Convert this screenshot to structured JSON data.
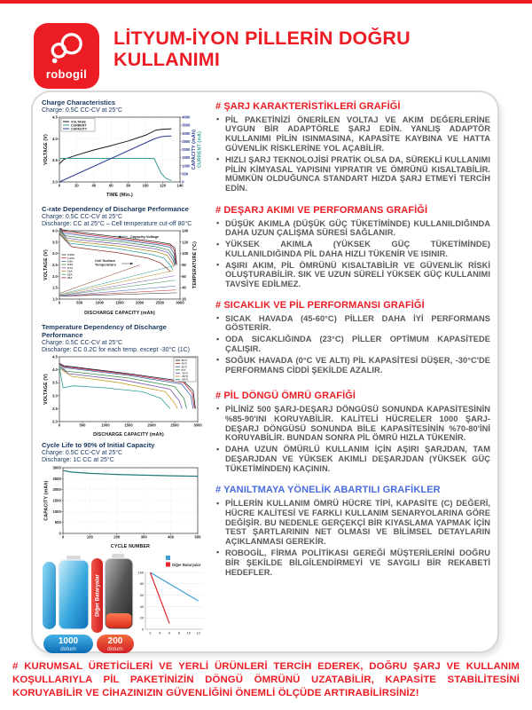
{
  "page": {
    "logo_text": "robogil",
    "title": "LİTYUM-İYON PİLLERİN DOĞRU KULLANIMI",
    "accent_red": "#ec1c24",
    "accent_blue": "#4a6bdf",
    "body_text_color": "#58595b"
  },
  "sections": [
    {
      "heading": "# ŞARJ KARAKTERİSTİKLERİ GRAFİĞİ",
      "color": "red",
      "bullets": [
        "PİL PAKETİNİZİ ÖNERİLEN VOLTAJ VE AKIM DEĞERLERİNE UYGUN BİR ADAPTÖRLE ŞARJ EDİN. YANLIŞ ADAPTÖR KULLANIMI PİLİN ISINMASINA, KAPASİTE KAYBINA VE HATTA GÜVENLİK RİSKLERİNE YOL AÇABİLİR.",
        "HIZLI ŞARJ TEKNOLOJİSİ PRATİK OLSA DA, SÜREKLİ KULLANIMI PİLİN KİMYASAL YAPISINI YIPRATIR VE ÖMRÜNÜ KISALTABİLİR. MÜMKÜN OLDUĞUNCA STANDART HIZDA ŞARJ ETMEYİ TERCİH EDİN."
      ]
    },
    {
      "heading": "# DEŞARJ AKIMI VE PERFORMANS GRAFİĞİ",
      "color": "red",
      "bullets": [
        "DÜŞÜK AKIMLA (DÜŞÜK GÜÇ TÜKETİMİNDE) KULLANILDIĞINDA DAHA UZUN ÇALIŞMA SÜRESİ SAĞLANIR.",
        "YÜKSEK AKIMLA (YÜKSEK GÜÇ TÜKETİMİNDE) KULLANILDIĞINDA PİL DAHA HIZLI TÜKENİR VE ISINIR.",
        "AŞIRI AKIM, PİL ÖMRÜNÜ KISALTABİLİR VE GÜVENLİK RİSKİ OLUŞTURABİLİR. SIK VE UZUN SÜRELİ YÜKSEK GÜÇ KULLANIMI TAVSİYE EDİLMEZ."
      ]
    },
    {
      "heading": "# SICAKLIK VE PİL PERFORMANSI GRAFİĞİ",
      "color": "red",
      "bullets": [
        "SICAK HAVADA (45-60°C) PİLLER DAHA İYİ PERFORMANS GÖSTERİR.",
        "ODA SICAKLIĞINDA (23°C) PİLLER OPTİMUM KAPASİTEDE ÇALIŞIR.",
        "SOĞUK HAVADA (0°C VE ALTI) PİL KAPASİTESİ DÜŞER, -30°C'DE PERFORMANS CİDDİ ŞEKİLDE AZALIR."
      ]
    },
    {
      "heading": "# PİL DÖNGÜ ÖMRÜ GRAFİĞİ",
      "color": "red",
      "bullets": [
        "PİLİNİZ 500 ŞARJ-DEŞARJ DÖNGÜSÜ SONUNDA KAPASİTESİNİN %85-90'INI KORUYABİLİR. KALİTELİ HÜCRELER 1000 ŞARJ-DEŞARJ DÖNGÜSÜ SONUNDA BİLE KAPASİTESİNİN %70-80'İNİ KORUYABİLİR. BUNDAN SONRA PİL ÖMRÜ HIZLA TÜKENİR.",
        "DAHA UZUN ÖMÜRLÜ KULLANIM İÇİN AŞIRI ŞARJDAN, TAM DEŞARJDAN VE YÜKSEK AKIMLI DEŞARJDAN (YÜKSEK GÜÇ TÜKETİMİNDEN) KAÇININ."
      ]
    },
    {
      "heading": "# YANILTMAYA YÖNELİK ABARTILI GRAFİKLER",
      "color": "blue",
      "bullets": [
        "PİLLERİN KULLANIM ÖMRÜ HÜCRE TİPİ, KAPASİTE (C) DEĞERİ, HÜCRE KALİTESİ VE FARKLI KULLANIM SENARYOLARINA GÖRE DEĞİŞİR. BU NEDENLE GERÇEKÇİ BİR KIYASLAMA YAPMAK İÇİN TEST ŞARTLARININ NET OLMASI VE BİLİMSEL DETAYLARIN AÇIKLANMASI GEREKİR.",
        "ROBOGİL, FİRMA POLİTİKASI GEREĞİ MÜŞTERİLERİNİ DOĞRU BİR ŞEKİLDE BİLGİLENDİRMEYİ VE SAYGILI BİR REKABETİ HEDEFLER."
      ]
    }
  ],
  "footer": "# KURUMSAL ÜRETİCİLERİ VE YERLİ ÜRÜNLERİ TERCİH EDEREK, DOĞRU ŞARJ VE KULLANIM KOŞULLARIYLA PİL PAKETİNİZİN DÖNGÜ ÖMRÜNÜ UZATABİLİR, KAPASİTE STABİLİTESİNİ KORUYABİLİR VE CİHAZINIZIN GÜVENLİĞİNİ ÖNEMLİ ÖLÇÜDE ARTIRABİLİRSİNİZ!",
  "battery_graphic": {
    "other_batteries_label": "Diğer Bataryalar",
    "blue_pill": {
      "count": "1000",
      "unit": "dolum"
    },
    "red_pill": {
      "count": "200",
      "unit": "dolum"
    }
  },
  "chart_data": [
    {
      "id": "charge",
      "type": "line",
      "title": "Charge Characteristics",
      "subtitles": [
        "Charge: 0.5C CC-CV at 25°C"
      ],
      "xlabel": "TIME (Min.)",
      "ylabel_left": "VOLTAGE (V)",
      "ylabel_right": [
        "CAPACITY (mAh)",
        "CURRENT (mA)"
      ],
      "xlim": [
        0,
        140
      ],
      "xticks": [
        0,
        20,
        40,
        60,
        80,
        100,
        120,
        140
      ],
      "ylim_left": [
        3.0,
        4.5
      ],
      "yticks_left": [
        3.0,
        3.5,
        4.0,
        4.5
      ],
      "ylim_right": [
        0,
        4000
      ],
      "yticks_right": [
        0,
        500,
        1000,
        1500,
        2000,
        2500,
        3000,
        3500,
        4000
      ],
      "legend_position": "top-left",
      "series": [
        {
          "name": "VOLTAGE",
          "axis": "left",
          "color": "#1a1a1a",
          "points": [
            [
              0,
              3.42
            ],
            [
              5,
              3.52
            ],
            [
              20,
              3.62
            ],
            [
              40,
              3.74
            ],
            [
              60,
              3.84
            ],
            [
              80,
              3.95
            ],
            [
              100,
              4.08
            ],
            [
              112,
              4.2
            ],
            [
              120,
              4.22
            ],
            [
              130,
              4.23
            ]
          ]
        },
        {
          "name": "CURRENT",
          "axis": "right",
          "color": "#2e9e96",
          "points": [
            [
              0,
              1450
            ],
            [
              110,
              1450
            ],
            [
              114,
              1000
            ],
            [
              118,
              550
            ],
            [
              123,
              250
            ],
            [
              128,
              120
            ],
            [
              130,
              100
            ]
          ]
        },
        {
          "name": "CAPACITY",
          "axis": "right",
          "color": "#2b3990",
          "points": [
            [
              0,
              0
            ],
            [
              110,
              2660
            ],
            [
              118,
              2790
            ],
            [
              125,
              2830
            ],
            [
              130,
              2840
            ]
          ]
        }
      ]
    },
    {
      "id": "crate",
      "type": "line",
      "title": "C-rate Dependency of Discharge Performance",
      "subtitles": [
        "Charge: 0.5C CC-CV at 25°C",
        "Discharge: CC at 25°C – Cell temperature cut-off 80°C"
      ],
      "xlabel": "DISCHARGE CAPACITY (mAh)",
      "ylabel_left": "VOLTAGE (V)",
      "ylabel_right": "TEMPERATURE (°C)",
      "xlim": [
        0,
        3000
      ],
      "xticks": [
        0,
        500,
        1000,
        1500,
        2000,
        2500,
        3000
      ],
      "ylim_left": [
        1.0,
        4.0
      ],
      "yticks_left": [
        1.0,
        1.5,
        2.0,
        2.5,
        3.0,
        3.5,
        4.0
      ],
      "ylim_right": [
        20,
        140
      ],
      "yticks_right": [
        20,
        40,
        60,
        80,
        100,
        120,
        140
      ],
      "annotations": [
        "Capacity-Voltage",
        "Cell Surface Temperature"
      ],
      "series": [
        {
          "name": "0.58A",
          "color": "#2b2b2b",
          "v": [
            [
              0,
              4.18
            ],
            [
              60,
              4.05
            ],
            [
              500,
              3.93
            ],
            [
              1500,
              3.72
            ],
            [
              2400,
              3.52
            ],
            [
              2750,
              3.42
            ],
            [
              2870,
              3.25
            ],
            [
              2920,
              2.5
            ]
          ],
          "t": [
            [
              0,
              25
            ],
            [
              2920,
              31
            ]
          ]
        },
        {
          "name": "1.45A",
          "color": "#c2272d",
          "v": [
            [
              0,
              4.14
            ],
            [
              80,
              3.98
            ],
            [
              500,
              3.87
            ],
            [
              1500,
              3.66
            ],
            [
              2400,
              3.46
            ],
            [
              2750,
              3.36
            ],
            [
              2860,
              3.15
            ],
            [
              2900,
              2.55
            ]
          ],
          "t": [
            [
              0,
              25
            ],
            [
              2900,
              36
            ]
          ]
        },
        {
          "name": "2.9A",
          "color": "#3f63b0",
          "v": [
            [
              0,
              4.1
            ],
            [
              100,
              3.9
            ],
            [
              500,
              3.8
            ],
            [
              1500,
              3.6
            ],
            [
              2400,
              3.4
            ],
            [
              2750,
              3.28
            ],
            [
              2850,
              3.0
            ],
            [
              2890,
              2.5
            ]
          ],
          "t": [
            [
              0,
              25
            ],
            [
              2890,
              43
            ]
          ]
        },
        {
          "name": "5.8A",
          "color": "#3a8a4d",
          "v": [
            [
              0,
              4.05
            ],
            [
              150,
              3.78
            ],
            [
              500,
              3.7
            ],
            [
              1500,
              3.52
            ],
            [
              2400,
              3.3
            ],
            [
              2720,
              3.15
            ],
            [
              2840,
              2.85
            ],
            [
              2880,
              2.5
            ]
          ],
          "t": [
            [
              0,
              26
            ],
            [
              2880,
              53
            ]
          ]
        },
        {
          "name": "8.7A",
          "color": "#7a5aa8",
          "v": [
            [
              0,
              4.0
            ],
            [
              180,
              3.68
            ],
            [
              500,
              3.6
            ],
            [
              1500,
              3.42
            ],
            [
              2400,
              3.2
            ],
            [
              2700,
              3.05
            ],
            [
              2820,
              2.75
            ],
            [
              2870,
              2.45
            ]
          ],
          "t": [
            [
              0,
              26
            ],
            [
              2870,
              61
            ]
          ]
        },
        {
          "name": "15A",
          "color": "#b08a1e",
          "v": [
            [
              0,
              3.95
            ],
            [
              200,
              3.58
            ],
            [
              500,
              3.5
            ],
            [
              1500,
              3.32
            ],
            [
              2400,
              3.08
            ],
            [
              2680,
              2.92
            ],
            [
              2800,
              2.6
            ],
            [
              2850,
              2.4
            ]
          ],
          "t": [
            [
              0,
              27
            ],
            [
              2850,
              70
            ]
          ]
        },
        {
          "name": "20A",
          "color": "#2e9e96",
          "v": [
            [
              0,
              3.9
            ],
            [
              250,
              3.45
            ],
            [
              600,
              3.38
            ],
            [
              1500,
              3.2
            ],
            [
              2300,
              2.95
            ],
            [
              2600,
              2.8
            ],
            [
              2750,
              2.5
            ],
            [
              2820,
              2.3
            ]
          ],
          "t": [
            [
              0,
              28
            ],
            [
              2820,
              78
            ]
          ]
        },
        {
          "name": "25A",
          "color": "#8a3324",
          "v": [
            [
              0,
              3.85
            ],
            [
              300,
              3.3
            ],
            [
              700,
              3.2
            ],
            [
              1400,
              3.05
            ],
            [
              2200,
              2.8
            ],
            [
              2500,
              2.6
            ],
            [
              2680,
              2.35
            ],
            [
              2760,
              2.2
            ]
          ],
          "t": [
            [
              0,
              30
            ],
            [
              1000,
              55
            ],
            [
              2000,
              80
            ]
          ]
        }
      ]
    },
    {
      "id": "temperature",
      "type": "line",
      "title": "Temperature Dependency of Discharge Performance",
      "subtitles": [
        "Charge: 0.5C CC-CV at 25°C",
        "Discharge: CC 0.2C for each temp. except -30°C (1C)"
      ],
      "xlabel": "DISCHARGE CAPACITY (mAh)",
      "ylabel": "VOLTAGE (V)",
      "xlim": [
        0,
        3000
      ],
      "xticks": [
        0,
        500,
        1000,
        1500,
        2000,
        2500,
        3000
      ],
      "ylim": [
        2.0,
        4.5
      ],
      "yticks": [
        2.0,
        2.5,
        3.0,
        3.5,
        4.0,
        4.5
      ],
      "legend_position": "top-right",
      "series": [
        {
          "name": "60°C",
          "color": "#1c1c3a",
          "points": [
            [
              0,
              4.25
            ],
            [
              100,
              4.15
            ],
            [
              1500,
              3.85
            ],
            [
              2700,
              3.55
            ],
            [
              2900,
              3.2
            ],
            [
              2950,
              2.5
            ]
          ]
        },
        {
          "name": "45°C",
          "color": "#c2272d",
          "points": [
            [
              0,
              4.22
            ],
            [
              100,
              4.12
            ],
            [
              1500,
              3.82
            ],
            [
              2700,
              3.5
            ],
            [
              2880,
              3.1
            ],
            [
              2930,
              2.5
            ]
          ]
        },
        {
          "name": "25°C",
          "color": "#3f63b0",
          "points": [
            [
              0,
              4.2
            ],
            [
              100,
              4.08
            ],
            [
              1500,
              3.78
            ],
            [
              2650,
              3.45
            ],
            [
              2850,
              3.0
            ],
            [
              2900,
              2.5
            ]
          ]
        },
        {
          "name": "0°C",
          "color": "#3a8a4d",
          "points": [
            [
              0,
              4.15
            ],
            [
              150,
              3.95
            ],
            [
              1500,
              3.68
            ],
            [
              2500,
              3.35
            ],
            [
              2700,
              2.9
            ],
            [
              2760,
              2.5
            ]
          ]
        },
        {
          "name": "-10°C",
          "color": "#7a5aa8",
          "points": [
            [
              0,
              4.1
            ],
            [
              200,
              3.85
            ],
            [
              1400,
              3.6
            ],
            [
              2400,
              3.25
            ],
            [
              2600,
              2.8
            ],
            [
              2660,
              2.5
            ]
          ]
        },
        {
          "name": "-20°C",
          "color": "#c9a227",
          "points": [
            [
              0,
              4.05
            ],
            [
              250,
              3.75
            ],
            [
              1300,
              3.5
            ],
            [
              2300,
              3.15
            ],
            [
              2500,
              2.7
            ],
            [
              2560,
              2.5
            ]
          ]
        },
        {
          "name": "-30°C",
          "color": "#2e9e96",
          "points": [
            [
              0,
              4.1
            ],
            [
              80,
              3.3
            ],
            [
              300,
              3.38
            ],
            [
              1000,
              3.3
            ],
            [
              1800,
              3.15
            ],
            [
              2200,
              2.9
            ],
            [
              2350,
              2.6
            ],
            [
              2400,
              2.5
            ]
          ]
        }
      ]
    },
    {
      "id": "cycle-life",
      "type": "line",
      "title": "Cycle Life to 90% of Initial Capacity",
      "subtitles": [
        "Charge: 0.5C CC-CV at 25°C",
        "Discharge: 1C CC at 25°C"
      ],
      "xlabel": "CYCLE NUMBER",
      "ylabel": "CAPACITY (mAh)",
      "xlim": [
        0,
        500
      ],
      "xticks": [
        0,
        100,
        200,
        300,
        400,
        500
      ],
      "ylim": [
        0,
        3000
      ],
      "yticks": [
        0,
        500,
        1000,
        1500,
        2000,
        2500,
        3000
      ],
      "series": [
        {
          "name": "Capacity",
          "color": "#1f7a78",
          "points": [
            [
              0,
              2870
            ],
            [
              30,
              2800
            ],
            [
              100,
              2740
            ],
            [
              200,
              2690
            ],
            [
              300,
              2660
            ],
            [
              400,
              2630
            ],
            [
              500,
              2610
            ]
          ]
        }
      ]
    },
    {
      "id": "comparison",
      "type": "line",
      "title": "",
      "xlim": [
        1,
        13
      ],
      "xticks": [
        2,
        4,
        6,
        8,
        10,
        12
      ],
      "ylim": [
        0,
        100
      ],
      "yticks": [
        0,
        20,
        40,
        60,
        80,
        100
      ],
      "series": [
        {
          "name": "",
          "color": "#3d9bd6",
          "points": [
            [
              2,
              100
            ],
            [
              12,
              50
            ]
          ]
        },
        {
          "name": "Diğer Bataryalar",
          "color": "#e8262b",
          "points": [
            [
              2,
              100
            ],
            [
              6,
              10
            ]
          ]
        }
      ]
    }
  ]
}
